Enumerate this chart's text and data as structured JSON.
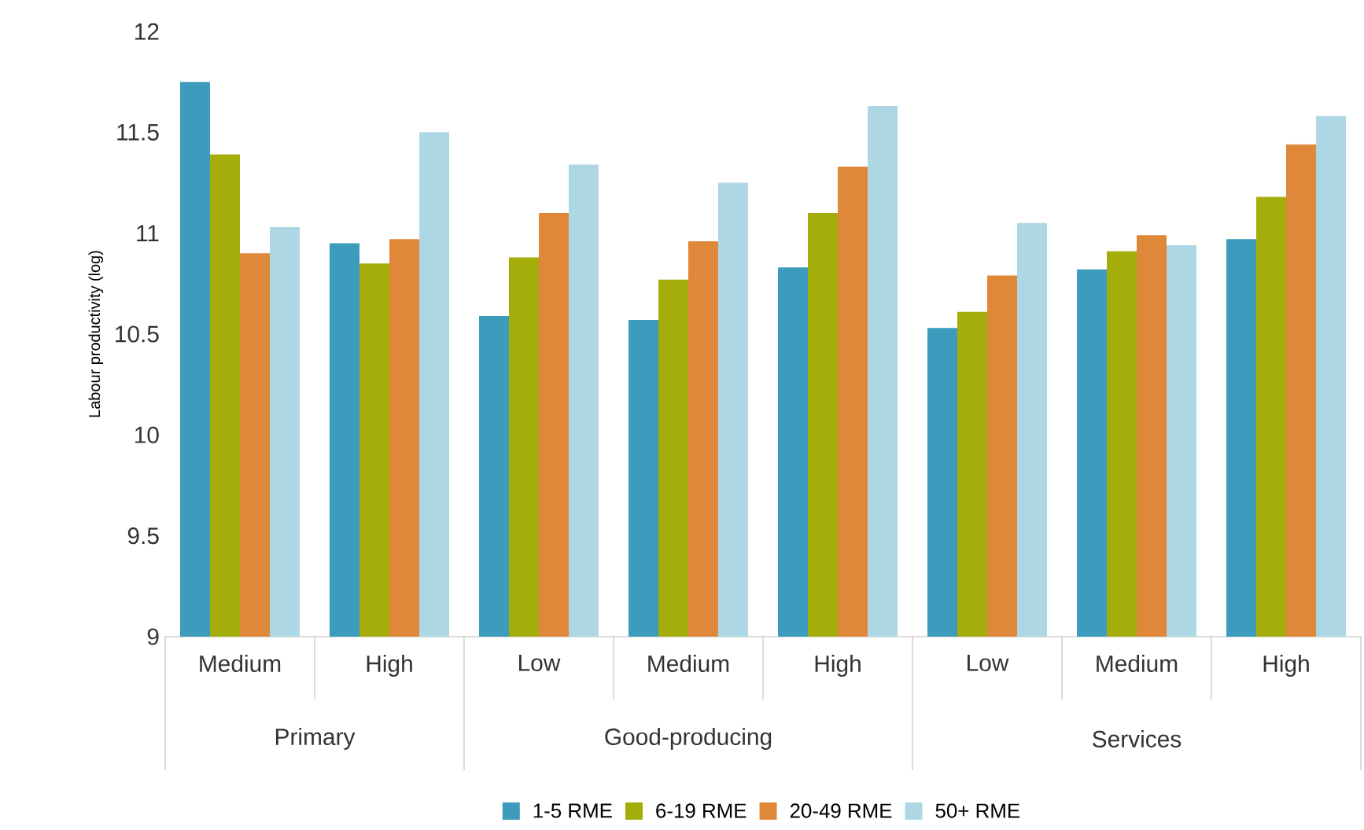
{
  "chart_data": {
    "type": "bar",
    "ylabel": "Labour productivity (log)",
    "categories": [
      "Medium",
      "High",
      "Low",
      "Medium",
      "High",
      "Low",
      "Medium",
      "High"
    ],
    "annotations": [
      "Primary",
      "Good-producing",
      "Services"
    ],
    "series": [
      {
        "name": "1-5 RME",
        "color": "#3d9bbd",
        "values": [
          11.75,
          10.95,
          10.59,
          10.57,
          10.83,
          10.53,
          10.82,
          10.97
        ]
      },
      {
        "name": "6-19 RME",
        "color": "#a5ad0b",
        "values": [
          11.39,
          10.85,
          10.88,
          10.77,
          11.1,
          10.61,
          10.91,
          11.18
        ]
      },
      {
        "name": "20-49 RME",
        "color": "#e0883a",
        "values": [
          10.9,
          10.97,
          11.1,
          10.96,
          11.33,
          10.79,
          10.99,
          11.44
        ]
      },
      {
        "name": "50+ RME",
        "color": "#aed7e6",
        "values": [
          11.03,
          11.5,
          11.34,
          11.25,
          11.63,
          11.05,
          10.94,
          11.58
        ]
      }
    ],
    "ylim": [
      9,
      12
    ],
    "yticks": [
      9,
      9.5,
      10,
      10.5,
      11,
      11.5,
      12
    ],
    "legend": "bottom"
  }
}
